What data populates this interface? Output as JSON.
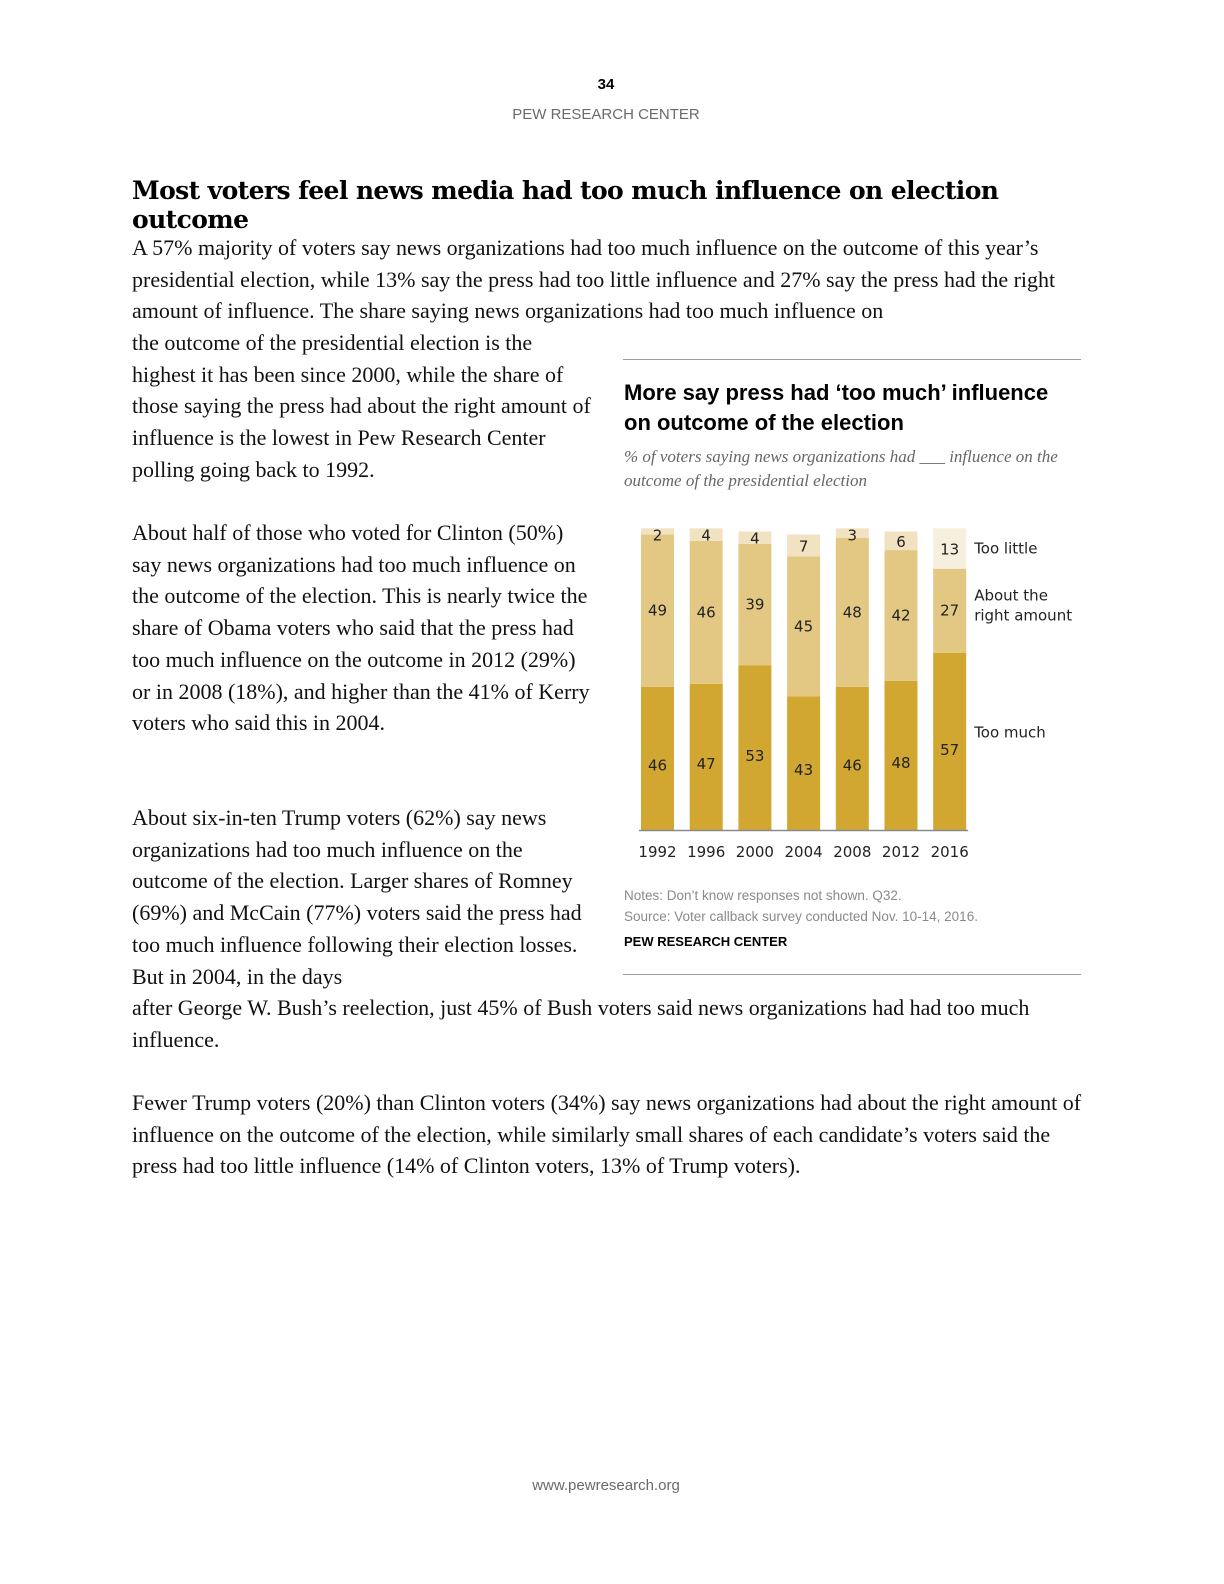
{
  "header": {
    "page_number": "34",
    "org": "PEW RESEARCH CENTER"
  },
  "article": {
    "title": "Most voters feel news media had too much influence on election outcome",
    "para1_full": "A 57% majority of voters say news organizations had too much influence on the outcome of this year’s presidential election, while 13% say the press had too little influence and 27% say the press had the right amount of influence. The share saying news organizations had too much influence on",
    "para1_narrow": "the outcome of the presidential election is the highest it has been since 2000, while the share of those saying the press had about the right amount of influence is the lowest in Pew Research Center polling going back to 1992.",
    "para2": "About half of those who voted for Clinton (50%) say news organizations had too much influence on the outcome of the election. This is nearly twice the share of Obama voters who said that the press had too much influence on the outcome in 2012 (29%) or in 2008 (18%), and higher than the 41% of Kerry voters who said this in 2004.",
    "para3_narrow": "About six-in-ten Trump voters (62%) say news organizations had too much influence on the outcome of the election. Larger shares of Romney (69%) and McCain (77%) voters said the press had too much influence following their election losses. But in 2004, in the days",
    "para3_full": "after George W. Bush’s reelection, just 45% of Bush voters said news organizations had had too much influence.",
    "para4": "Fewer Trump voters (20%) than Clinton voters (34%) say news organizations had about the right amount of influence on the outcome of the election, while similarly small shares of each candidate’s voters said the press had too little influence (14% of Clinton voters, 13% of Trump voters)."
  },
  "chart_data": {
    "type": "bar",
    "stacked": true,
    "title": "More say press had ‘too much’ influence on outcome of the election",
    "subtitle": "% of voters saying news organizations had ___ influence on the outcome of the presidential election",
    "categories": [
      "1992",
      "1996",
      "2000",
      "2004",
      "2008",
      "2012",
      "2016"
    ],
    "series": [
      {
        "name": "Too much",
        "values": [
          46,
          47,
          53,
          43,
          46,
          48,
          57
        ],
        "color": "#d1a731",
        "color_last": "#d1a731"
      },
      {
        "name": "About the right amount",
        "values": [
          49,
          46,
          39,
          45,
          48,
          42,
          27
        ],
        "color": "#e3c884",
        "color_last": "#e3c884"
      },
      {
        "name": "Too little",
        "values": [
          2,
          4,
          4,
          7,
          3,
          6,
          13
        ],
        "color": "#f1e3c2",
        "color_last": "#f7efdd"
      }
    ],
    "legend_placement": "right, inline with last bar",
    "ylim": [
      0,
      100
    ],
    "grid": false,
    "notes": "Notes: Don’t know responses not shown. Q32.",
    "source": "Source: Voter callback survey conducted Nov. 10-14, 2016.",
    "credit": "PEW RESEARCH CENTER"
  },
  "footer": {
    "url": "www.pewresearch.org"
  }
}
